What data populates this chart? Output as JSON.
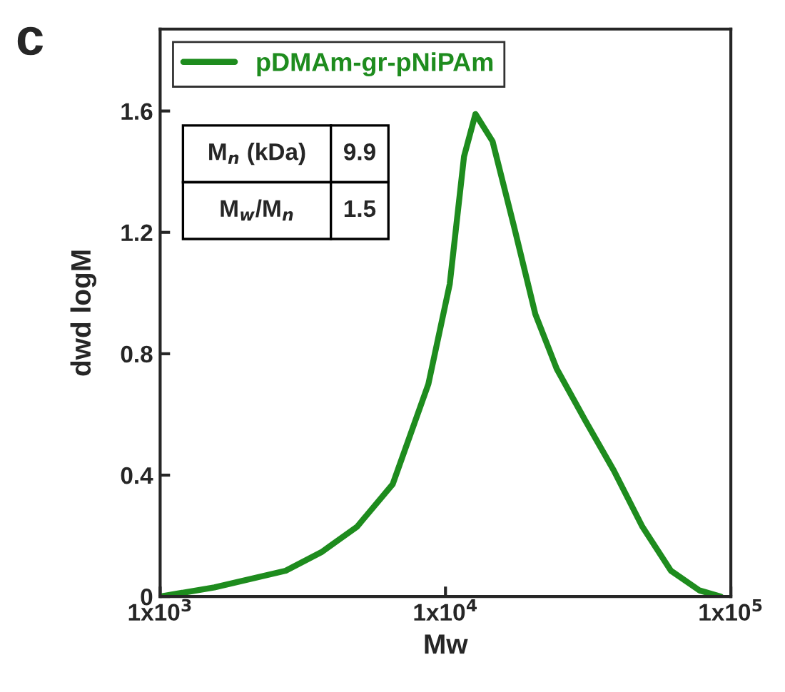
{
  "chart_data": {
    "type": "line",
    "title": "c",
    "xlabel": "Mw",
    "ylabel": "dwd logM",
    "log": "x",
    "x": [
      1000,
      1549,
      2754,
      3673,
      4898,
      6531,
      8710,
      10351,
      11614,
      12735,
      14622,
      17378,
      20654,
      24547,
      30903,
      38905,
      48978,
      61660,
      77625,
      92257
    ],
    "series": [
      {
        "name": "pDMAm-gr-pNiPAm",
        "color": "#1e8c1e",
        "values": [
          0,
          0.03,
          0.085,
          0.146,
          0.23,
          0.37,
          0.7,
          1.03,
          1.45,
          1.59,
          1.5,
          1.22,
          0.93,
          0.75,
          0.58,
          0.415,
          0.23,
          0.085,
          0.02,
          0
        ]
      }
    ],
    "xlim": [
      1000,
      100000
    ],
    "xticks": [
      {
        "value": 1000,
        "label": "1x10$^{3}$"
      },
      {
        "value": 10000,
        "label": "1x10$^{4}$"
      },
      {
        "value": 100000,
        "label": "1x10$^{5}$"
      }
    ],
    "ylim": [
      0,
      1.87
    ],
    "yticks": [
      0,
      0.4,
      0.8,
      1.2,
      1.6
    ],
    "annotations": [
      "M$_{n}$ (kDa)",
      "9.9",
      "M$_{w}$/M$_{n}$",
      "1.5"
    ],
    "legend": "top left",
    "grid": false,
    "marker": "none",
    "line_style": "solid"
  }
}
